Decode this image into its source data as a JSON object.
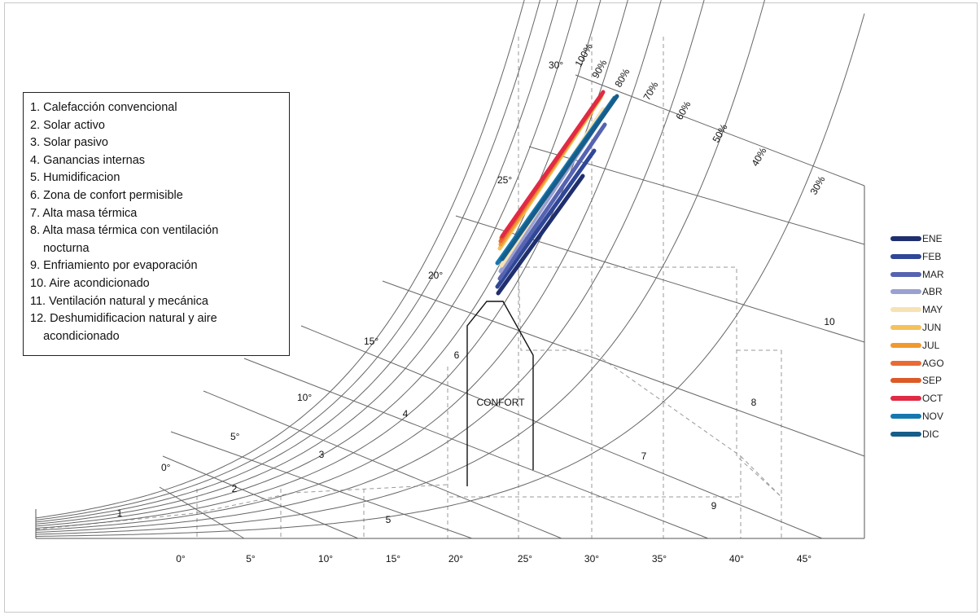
{
  "legend_items": [
    "1. Calefacción convencional",
    "2. Solar activo",
    "3. Solar pasivo",
    "4. Ganancias internas",
    "5. Humidificacion",
    "6. Zona de confort permisible",
    "7. Alta masa térmica",
    "8. Alta masa térmica con ventilación\n    nocturna",
    "9. Enfriamiento por evaporación",
    "10. Aire acondicionado",
    "11. Ventilación natural y mecánica",
    "12. Deshumidificacion natural y aire\n    acondicionado"
  ],
  "x_axis_ticks": [
    "0°",
    "5°",
    "10°",
    "15°",
    "20°",
    "25°",
    "30°",
    "35°",
    "40°",
    "45°"
  ],
  "wet_bulb_labels": [
    "0°",
    "5°",
    "10°",
    "15°",
    "20°",
    "25°",
    "30°"
  ],
  "rh_labels": [
    "100%",
    "90%",
    "80%",
    "70%",
    "60%",
    "50%",
    "40%",
    "30%"
  ],
  "zone_numbers": [
    "1",
    "2",
    "3",
    "4",
    "5",
    "6",
    "7",
    "8",
    "9",
    "10"
  ],
  "confort_label": "CONFORT",
  "months": [
    {
      "name": "ENE",
      "color": "#1f2f6e"
    },
    {
      "name": "FEB",
      "color": "#2f4796"
    },
    {
      "name": "MAR",
      "color": "#5663b0"
    },
    {
      "name": "ABR",
      "color": "#9aa0d0"
    },
    {
      "name": "MAY",
      "color": "#f7e2b4"
    },
    {
      "name": "JUN",
      "color": "#f4c15c"
    },
    {
      "name": "JUL",
      "color": "#ef9930"
    },
    {
      "name": "AGO",
      "color": "#ea6a35"
    },
    {
      "name": "SEP",
      "color": "#dc5a26"
    },
    {
      "name": "OCT",
      "color": "#e12a44"
    },
    {
      "name": "NOV",
      "color": "#1677b0"
    },
    {
      "name": "DIC",
      "color": "#165d8a"
    }
  ]
}
